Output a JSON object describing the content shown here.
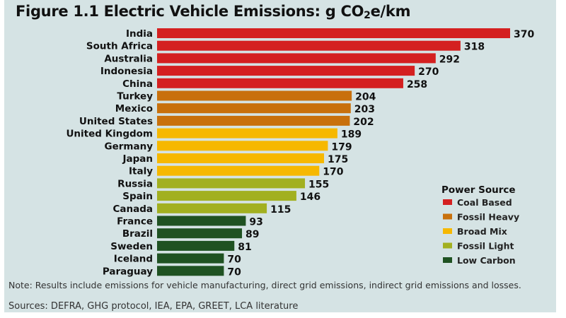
{
  "chart_data": {
    "type": "bar",
    "orientation": "horizontal",
    "title": "Figure 1.1  Electric Vehicle Emissions: g CO2e/km",
    "categories": [
      "India",
      "South Africa",
      "Australia",
      "Indonesia",
      "China",
      "Turkey",
      "Mexico",
      "United States",
      "United Kingdom",
      "Germany",
      "Japan",
      "Italy",
      "Russia",
      "Spain",
      "Canada",
      "France",
      "Brazil",
      "Sweden",
      "Iceland",
      "Paraguay"
    ],
    "values": [
      370,
      318,
      292,
      270,
      258,
      204,
      203,
      202,
      189,
      179,
      175,
      170,
      155,
      146,
      115,
      93,
      89,
      81,
      70,
      70
    ],
    "groups": [
      "Coal Based",
      "Coal Based",
      "Coal Based",
      "Coal Based",
      "Coal Based",
      "Fossil Heavy",
      "Fossil Heavy",
      "Fossil Heavy",
      "Broad Mix",
      "Broad Mix",
      "Broad Mix",
      "Broad Mix",
      "Fossil Light",
      "Fossil Light",
      "Fossil Light",
      "Low Carbon",
      "Low Carbon",
      "Low Carbon",
      "Low Carbon",
      "Low Carbon"
    ],
    "legend": {
      "title": "Power Source",
      "placement": "bottom-right",
      "entries": [
        {
          "name": "Coal Based",
          "color": "#d42020"
        },
        {
          "name": "Fossil Heavy",
          "color": "#c8700c"
        },
        {
          "name": "Broad Mix",
          "color": "#f6b800"
        },
        {
          "name": "Fossil Light",
          "color": "#a2b020"
        },
        {
          "name": "Low Carbon",
          "color": "#1f5222"
        }
      ]
    },
    "xlim": [
      0,
      370
    ],
    "grid": false
  },
  "title_parts": {
    "main": "Figure 1.1  Electric Vehicle Emissions: g CO",
    "sub": "2",
    "tail": "e/km"
  },
  "note": "Note:  Results include emissions for vehicle manufacturing, direct grid emissions, indirect grid emissions and losses.",
  "sources": "Sources: DEFRA, GHG protocol, IEA, EPA, GREET, LCA literature"
}
